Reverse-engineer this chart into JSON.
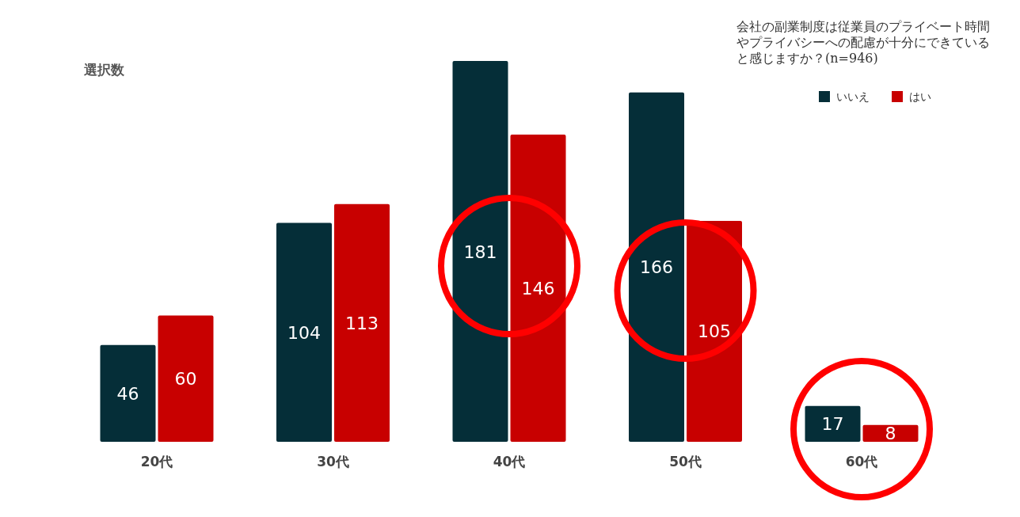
{
  "chart_data": {
    "type": "bar",
    "title": "会社の副業制度は従業員のプライベート時間やプライバシーへの配慮が十分にできていると感じますか？(n=946)",
    "ylabel": "選択数",
    "categories": [
      "20代",
      "30代",
      "40代",
      "50代",
      "60代"
    ],
    "series": [
      {
        "name": "いいえ",
        "color": "#052e38",
        "values": [
          46,
          104,
          181,
          166,
          17
        ]
      },
      {
        "name": "はい",
        "color": "#c80000",
        "values": [
          60,
          113,
          146,
          105,
          8
        ]
      }
    ],
    "data_labels": true,
    "legend": "top right"
  }
}
